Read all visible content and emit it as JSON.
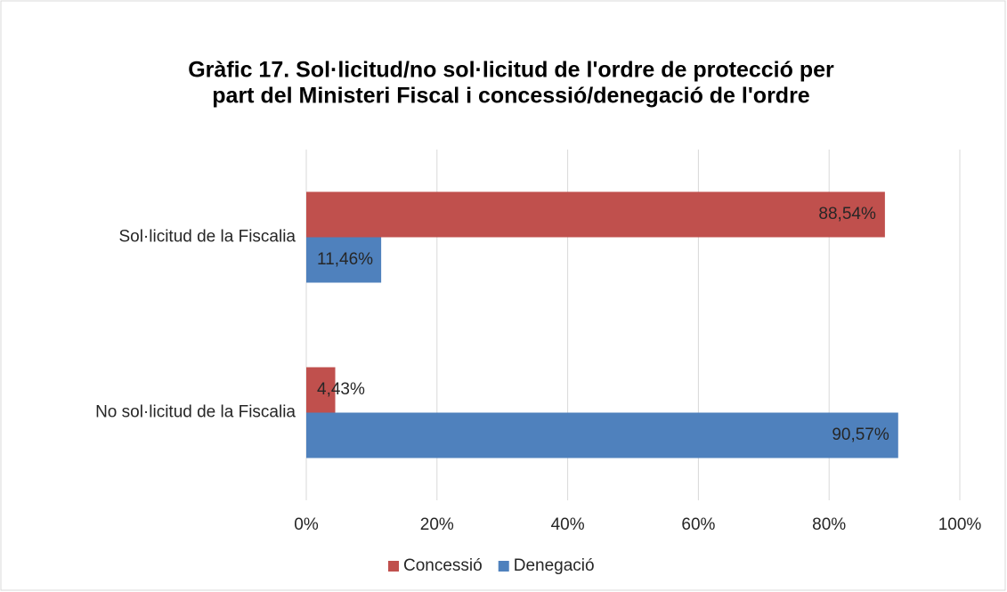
{
  "chart_data": {
    "type": "hbar",
    "title": [
      "Gràfic 17. Sol·licitud/no sol·licitud de l'ordre de protecció per",
      "part del Ministeri Fiscal i concessió/denegació de l'ordre"
    ],
    "categories": [
      "Sol·licitud  de la Fiscalia",
      "No sol·licitud de la Fiscalia"
    ],
    "series": [
      {
        "name": "Concessió",
        "color": "#c0504d",
        "values": [
          88.54,
          4.43
        ],
        "value_labels": [
          "88,54%",
          "4,43%"
        ]
      },
      {
        "name": "Denegació",
        "color": "#4f81bd",
        "values": [
          11.46,
          90.57
        ],
        "value_labels": [
          "11,46%",
          "90,57%"
        ]
      }
    ],
    "xlim": [
      0,
      100
    ],
    "xticks": [
      {
        "value": 0,
        "label": "0%"
      },
      {
        "value": 20,
        "label": "20%"
      },
      {
        "value": 40,
        "label": "40%"
      },
      {
        "value": 60,
        "label": "60%"
      },
      {
        "value": 80,
        "label": "80%"
      },
      {
        "value": 100,
        "label": "100%"
      }
    ],
    "grid": true,
    "legend": "bottom"
  }
}
